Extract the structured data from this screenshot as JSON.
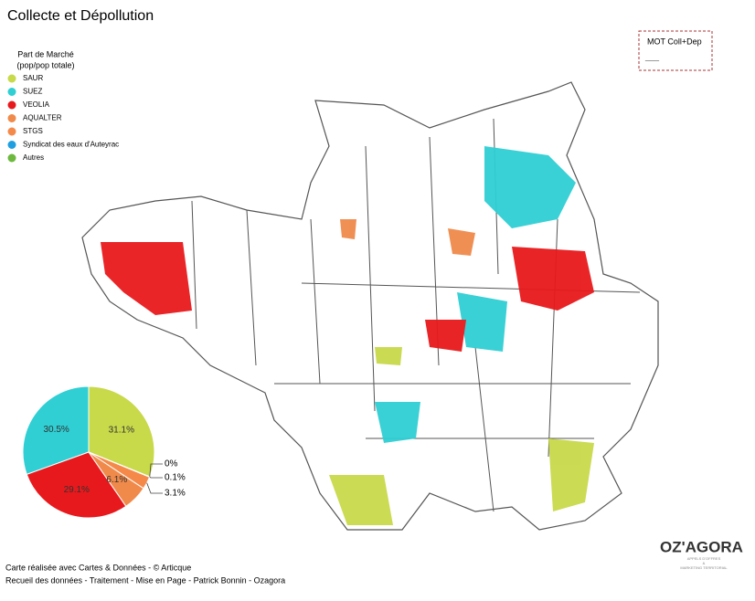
{
  "header": {
    "title": "Collecte et Dépollution"
  },
  "legend": {
    "title_line1": "Part de Marché",
    "title_line2": "(pop/pop totale)"
  },
  "chart_data": {
    "type": "pie",
    "categories": [
      "SAUR",
      "SUEZ",
      "VEOLIA",
      "AQUALTER",
      "STGS",
      "Syndicat des eaux d'Auteyrac",
      "Autres"
    ],
    "colors": [
      "#c8d94a",
      "#2fcfd3",
      "#e8191c",
      "#f08a4b",
      "#f4894a",
      "#1f9fe0",
      "#6db83e"
    ],
    "values": [
      31.1,
      30.5,
      29.1,
      6.1,
      3.1,
      0.1,
      0
    ],
    "value_labels": [
      "31.1%",
      "30.5%",
      "29.1%",
      "6.1%",
      "3.1%",
      "0.1%",
      "0%"
    ]
  },
  "map_legend": {
    "title": "MOT Coll+Dep",
    "line": "___"
  },
  "footer": {
    "line1": "Carte réalisée avec Cartes & Données - © Articque",
    "line2": "Recueil des données - Traitement - Mise en Page - Patrick Bonnin - Ozagora"
  },
  "logo": {
    "name": "OZ'AGORA",
    "tagline1": "APPELS D'OFFRES",
    "tagline2": "&",
    "tagline3": "MARKETING TERRITORIAL"
  }
}
